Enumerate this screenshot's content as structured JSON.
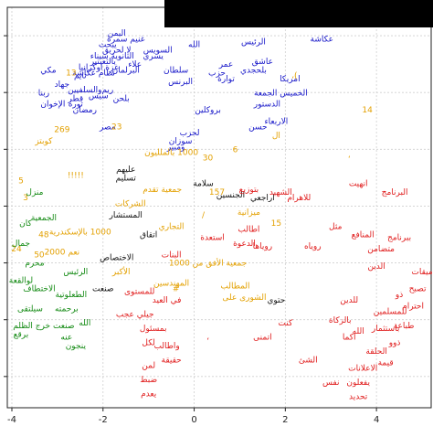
{
  "chart_data": {
    "type": "scatter",
    "title": "",
    "xlabel": "",
    "ylabel": "",
    "xlim": [
      -4.1,
      5.2
    ],
    "ylim": [
      -3.55,
      3.5
    ],
    "grid": true,
    "xticks": [
      -4,
      -2,
      0,
      2,
      4
    ],
    "xtick_labels": [
      "-4",
      "-2",
      "0",
      "2",
      "4"
    ],
    "yticks": [
      -3,
      -2,
      -1,
      0,
      1,
      2,
      3
    ],
    "ytick_labels": [
      "",
      "",
      "",
      "",
      "",
      "",
      ""
    ],
    "colors": {
      "blue": "#1515c8",
      "orange": "#e3a000",
      "green": "#138a13",
      "red": "#e01b1b",
      "black": "#111111"
    },
    "series": [
      {
        "color_key": "blue",
        "points": [
          {
            "x": -1.7,
            "y": 3.0,
            "label": "اليمن"
          },
          {
            "x": -1.5,
            "y": 2.9,
            "label": "غنيم سمرة"
          },
          {
            "x": -1.9,
            "y": 2.8,
            "label": "يبحث"
          },
          {
            "x": -1.7,
            "y": 2.7,
            "label": "لا لحريق"
          },
          {
            "x": -1.8,
            "y": 2.6,
            "label": "الثانوية سيناء"
          },
          {
            "x": -2.0,
            "y": 2.5,
            "label": "بالثعبتير"
          },
          {
            "x": -2.1,
            "y": 2.4,
            "label": "غزة اوكرانيا"
          },
          {
            "x": -2.2,
            "y": 2.3,
            "label": "نظام عكاشة"
          },
          {
            "x": -0.8,
            "y": 2.7,
            "label": "السويس"
          },
          {
            "x": 0.0,
            "y": 2.8,
            "label": "الله"
          },
          {
            "x": -0.9,
            "y": 2.6,
            "label": "يسري"
          },
          {
            "x": -1.3,
            "y": 2.45,
            "label": "علاء"
          },
          {
            "x": -1.5,
            "y": 2.35,
            "label": "البرلمان"
          },
          {
            "x": -3.2,
            "y": 2.35,
            "label": "مكي"
          },
          {
            "x": -2.5,
            "y": 2.25,
            "label": "تايم"
          },
          {
            "x": -2.9,
            "y": 2.1,
            "label": "جهاد"
          },
          {
            "x": -3.3,
            "y": 1.95,
            "label": "ربنا"
          },
          {
            "x": -2.4,
            "y": 2.0,
            "label": "والسلفيين"
          },
          {
            "x": -1.9,
            "y": 2.0,
            "label": "ريم"
          },
          {
            "x": -2.1,
            "y": 1.9,
            "label": "سيس"
          },
          {
            "x": -2.6,
            "y": 1.85,
            "label": "قطر"
          },
          {
            "x": -3.1,
            "y": 1.75,
            "label": "الإخوان"
          },
          {
            "x": -2.6,
            "y": 1.75,
            "label": "ثورة"
          },
          {
            "x": -2.4,
            "y": 1.65,
            "label": "رمضان"
          },
          {
            "x": -1.6,
            "y": 1.85,
            "label": "بلحن"
          },
          {
            "x": -0.4,
            "y": 2.35,
            "label": "سلطان"
          },
          {
            "x": -0.3,
            "y": 2.15,
            "label": "البرنس"
          },
          {
            "x": 0.7,
            "y": 2.45,
            "label": "عمر"
          },
          {
            "x": 0.5,
            "y": 2.3,
            "label": "حزب"
          },
          {
            "x": 0.7,
            "y": 2.2,
            "label": "توارة"
          },
          {
            "x": 1.3,
            "y": 2.85,
            "label": "الرئيس"
          },
          {
            "x": 1.5,
            "y": 2.5,
            "label": "عاشق"
          },
          {
            "x": 1.3,
            "y": 2.35,
            "label": "بلحجدي"
          },
          {
            "x": 2.8,
            "y": 2.9,
            "label": "عكاشة"
          },
          {
            "x": 2.1,
            "y": 2.2,
            "label": "امريكا"
          },
          {
            "x": 1.9,
            "y": 1.95,
            "label": "الخميس الجمعة"
          },
          {
            "x": 1.6,
            "y": 1.75,
            "label": "الدستور"
          },
          {
            "x": 0.3,
            "y": 1.65,
            "label": "بروكلين"
          },
          {
            "x": 1.8,
            "y": 1.45,
            "label": "الاربعاء"
          },
          {
            "x": 1.4,
            "y": 1.35,
            "label": "حسن"
          },
          {
            "x": -0.1,
            "y": 1.25,
            "label": "لحزب"
          },
          {
            "x": -0.3,
            "y": 1.1,
            "label": "سوزان"
          },
          {
            "x": -0.4,
            "y": 1.0,
            "label": "ومبير"
          },
          {
            "x": -1.9,
            "y": 1.35,
            "label": "مصر"
          }
        ]
      },
      {
        "color_key": "orange",
        "points": [
          {
            "x": -2.7,
            "y": 2.3,
            "label": "13"
          },
          {
            "x": -1.7,
            "y": 1.35,
            "label": "23"
          },
          {
            "x": -2.9,
            "y": 1.3,
            "label": "269"
          },
          {
            "x": -3.3,
            "y": 1.1,
            "label": "كوبتز"
          },
          {
            "x": -0.5,
            "y": 0.9,
            "label": "1000 بالملليون"
          },
          {
            "x": 0.3,
            "y": 0.8,
            "label": "30"
          },
          {
            "x": 0.9,
            "y": 0.95,
            "label": "6"
          },
          {
            "x": 2.2,
            "y": 2.25,
            "label": ")،"
          },
          {
            "x": 3.8,
            "y": 1.65,
            "label": "14"
          },
          {
            "x": 1.8,
            "y": 1.2,
            "label": "ال"
          },
          {
            "x": 3.4,
            "y": 0.85,
            "label": "،"
          },
          {
            "x": -2.6,
            "y": 0.5,
            "label": "!!!!!"
          },
          {
            "x": -3.8,
            "y": 0.4,
            "label": "5"
          },
          {
            "x": -3.7,
            "y": 0.1,
            "label": "3"
          },
          {
            "x": -0.7,
            "y": 0.25,
            "label": "جمعية تقدم"
          },
          {
            "x": 0.5,
            "y": 0.2,
            "label": "157"
          },
          {
            "x": 0.2,
            "y": -0.2,
            "label": "/"
          },
          {
            "x": -2.5,
            "y": -0.5,
            "label": "1000 بالإسكندرية"
          },
          {
            "x": -3.3,
            "y": -0.55,
            "label": "48"
          },
          {
            "x": -3.9,
            "y": -0.8,
            "label": "24"
          },
          {
            "x": -3.4,
            "y": -0.9,
            "label": "50"
          },
          {
            "x": -2.9,
            "y": -0.85,
            "label": "نعم 2000"
          },
          {
            "x": 0.3,
            "y": -1.05,
            "label": "جمعية الأفق من 1000"
          },
          {
            "x": 1.2,
            "y": -0.15,
            "label": "ميزانية"
          },
          {
            "x": 1.8,
            "y": -0.35,
            "label": "15"
          },
          {
            "x": -0.4,
            "y": -1.5,
            "label": "#"
          },
          {
            "x": 0.9,
            "y": -1.45,
            "label": "المطالب"
          },
          {
            "x": 1.1,
            "y": -1.65,
            "label": "الشورى على"
          },
          {
            "x": -0.5,
            "y": -1.4,
            "label": "المهندسين"
          },
          {
            "x": -1.6,
            "y": -1.2,
            "label": "الأكبر"
          },
          {
            "x": -1.4,
            "y": 0.0,
            "label": "الشركات"
          },
          {
            "x": -0.5,
            "y": -0.4,
            "label": "التجاري"
          }
        ]
      },
      {
        "color_key": "green",
        "points": [
          {
            "x": -3.5,
            "y": 0.2,
            "label": "منزل"
          },
          {
            "x": -3.7,
            "y": -0.35,
            "label": "كان"
          },
          {
            "x": -3.3,
            "y": -0.25,
            "label": "الجمعية"
          },
          {
            "x": -3.8,
            "y": -0.7,
            "label": "جمال"
          },
          {
            "x": -3.5,
            "y": -1.05,
            "label": "محرم"
          },
          {
            "x": -3.8,
            "y": -1.35,
            "label": "لوالقعة"
          },
          {
            "x": -3.4,
            "y": -1.5,
            "label": "الاختطاف"
          },
          {
            "x": -3.6,
            "y": -1.85,
            "label": "سيلتقى"
          },
          {
            "x": -3.3,
            "y": -2.15,
            "label": "صنعت خرج الظلم"
          },
          {
            "x": -3.8,
            "y": -2.3,
            "label": "برقع"
          },
          {
            "x": -2.8,
            "y": -2.35,
            "label": "عنه"
          },
          {
            "x": -2.7,
            "y": -1.6,
            "label": "الطعلوتية"
          },
          {
            "x": -2.8,
            "y": -1.85,
            "label": "برحمته"
          },
          {
            "x": -2.6,
            "y": -1.2,
            "label": "الرئيس"
          },
          {
            "x": -2.4,
            "y": -2.1,
            "label": "الله"
          },
          {
            "x": -2.6,
            "y": -2.5,
            "label": "ينجون"
          }
        ]
      },
      {
        "color_key": "black",
        "points": [
          {
            "x": -1.5,
            "y": 0.6,
            "label": "عليهم"
          },
          {
            "x": -1.5,
            "y": 0.45,
            "label": "تسليم"
          },
          {
            "x": 0.2,
            "y": 0.35,
            "label": "سلامة"
          },
          {
            "x": 0.8,
            "y": 0.15,
            "label": "الجنسين"
          },
          {
            "x": 1.5,
            "y": 0.1,
            "label": "اراجعي"
          },
          {
            "x": -1.5,
            "y": -0.2,
            "label": "المستشار"
          },
          {
            "x": -1.0,
            "y": -0.55,
            "label": "اتقاق"
          },
          {
            "x": -1.7,
            "y": -0.95,
            "label": "الاختصاص"
          },
          {
            "x": 1.8,
            "y": -1.7,
            "label": "حتوي"
          },
          {
            "x": -2.0,
            "y": -1.5,
            "label": "صنعت"
          }
        ]
      },
      {
        "color_key": "red",
        "points": [
          {
            "x": 3.6,
            "y": 0.35,
            "label": "انهيت"
          },
          {
            "x": 2.3,
            "y": 0.1,
            "label": "للاهرام"
          },
          {
            "x": 1.9,
            "y": 0.2,
            "label": "الشهيد"
          },
          {
            "x": 1.2,
            "y": 0.25,
            "label": "بتوزيع"
          },
          {
            "x": 4.4,
            "y": 0.2,
            "label": "البرنامج"
          },
          {
            "x": 3.1,
            "y": -0.4,
            "label": "مثل"
          },
          {
            "x": 3.7,
            "y": -0.55,
            "label": "المنافع"
          },
          {
            "x": 4.5,
            "y": -0.6,
            "label": "ببرنامج"
          },
          {
            "x": 1.2,
            "y": -0.45,
            "label": "اطالب"
          },
          {
            "x": 0.4,
            "y": -0.6,
            "label": "استعدة"
          },
          {
            "x": 1.1,
            "y": -0.7,
            "label": "الدعوة"
          },
          {
            "x": 1.5,
            "y": -0.75,
            "label": "روياها"
          },
          {
            "x": 2.6,
            "y": -0.75,
            "label": "روياه"
          },
          {
            "x": 4.1,
            "y": -0.8,
            "label": "متضامن"
          },
          {
            "x": 4.0,
            "y": -1.1,
            "label": "الدين"
          },
          {
            "x": -0.5,
            "y": -0.9,
            "label": "البنات"
          },
          {
            "x": -1.2,
            "y": -1.55,
            "label": "للمستوى"
          },
          {
            "x": -0.6,
            "y": -1.7,
            "label": "في العيد"
          },
          {
            "x": -1.3,
            "y": -1.95,
            "label": "جيلي عجب"
          },
          {
            "x": -0.9,
            "y": -2.2,
            "label": "بمسئول"
          },
          {
            "x": -1.0,
            "y": -2.45,
            "label": "لكل"
          },
          {
            "x": -0.6,
            "y": -2.5,
            "label": "واطالب"
          },
          {
            "x": -0.5,
            "y": -2.75,
            "label": "حقيقة"
          },
          {
            "x": -1.0,
            "y": -2.85,
            "label": "لمن"
          },
          {
            "x": -1.0,
            "y": -3.1,
            "label": "ضبط"
          },
          {
            "x": -1.0,
            "y": -3.35,
            "label": "يعدم"
          },
          {
            "x": 2.0,
            "y": -2.1,
            "label": "كنت"
          },
          {
            "x": 1.5,
            "y": -2.35,
            "label": "اتمنى"
          },
          {
            "x": 0.3,
            "y": -2.35,
            "label": "،"
          },
          {
            "x": 2.5,
            "y": -2.75,
            "label": "الشئ"
          },
          {
            "x": 3.0,
            "y": -3.15,
            "label": "نفس"
          },
          {
            "x": 3.6,
            "y": -3.15,
            "label": "يفعلون"
          },
          {
            "x": 3.6,
            "y": -3.4,
            "label": "تحديد"
          },
          {
            "x": 3.7,
            "y": -2.9,
            "label": "الاعلانات"
          },
          {
            "x": 3.4,
            "y": -1.7,
            "label": "للدين"
          },
          {
            "x": 3.2,
            "y": -2.05,
            "label": "بالزكاة"
          },
          {
            "x": 3.4,
            "y": -2.35,
            "label": "اكما"
          },
          {
            "x": 3.6,
            "y": -2.25,
            "label": "الله"
          },
          {
            "x": 4.0,
            "y": -2.6,
            "label": "الحلقة"
          },
          {
            "x": 4.2,
            "y": -2.8,
            "label": "قيمة"
          },
          {
            "x": 4.4,
            "y": -2.45,
            "label": "ذوو"
          },
          {
            "x": 4.6,
            "y": -2.15,
            "label": "طباعة"
          },
          {
            "x": 4.8,
            "y": -1.8,
            "label": "احترام"
          },
          {
            "x": 4.9,
            "y": -1.5,
            "label": "تصبح"
          },
          {
            "x": 4.5,
            "y": -1.6,
            "label": "ذو"
          },
          {
            "x": 4.3,
            "y": -1.9,
            "label": "للمسلمين"
          },
          {
            "x": 4.2,
            "y": -2.2,
            "label": "باستثمار"
          },
          {
            "x": 5.0,
            "y": -1.2,
            "label": "ميقات"
          }
        ]
      }
    ]
  }
}
